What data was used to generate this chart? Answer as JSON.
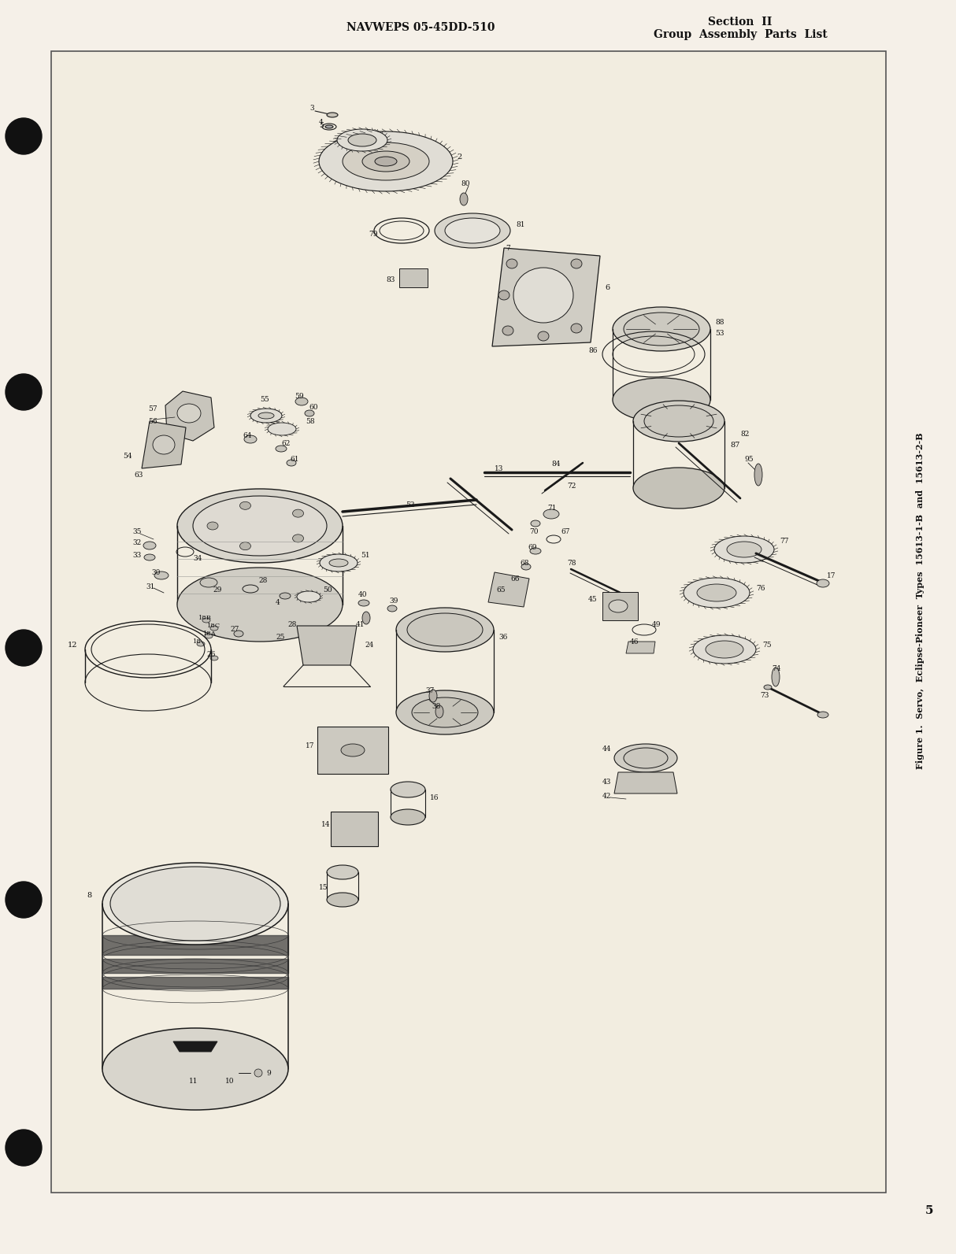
{
  "bg_color": "#f5f0e8",
  "page_bg": "#f8f4ec",
  "content_bg": "#f2ede0",
  "header_left": "NAVWEPS 05-45DD-510",
  "header_right_line1": "Section  II",
  "header_right_line2": "Group  Assembly  Parts  List",
  "page_number": "5",
  "side_caption": "Figure 1.  Servo,  Eclipse-Pioneer  Types  15613-1-B  and  15613-2-B",
  "border_color": "#555555",
  "text_color": "#111111",
  "line_color": "#1a1a1a",
  "hole_color": "#111111"
}
